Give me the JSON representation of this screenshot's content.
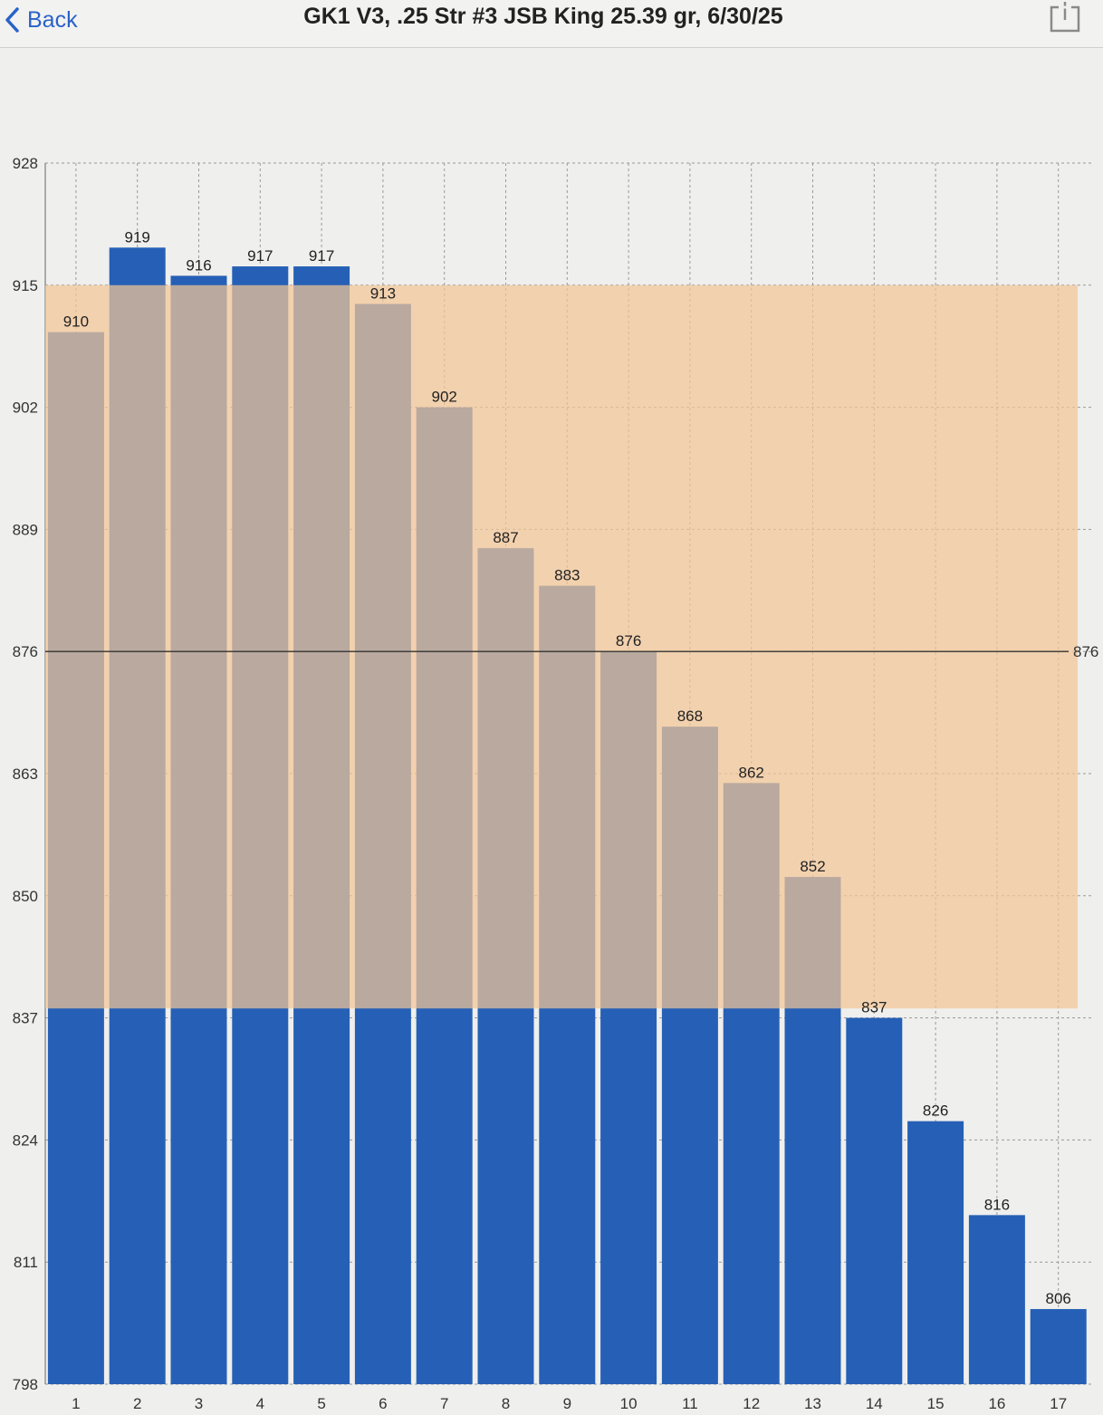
{
  "nav": {
    "back_label": "Back",
    "title": "GK1 V3, .25 Str #3 JSB King 25.39 gr, 6/30/25"
  },
  "icons": {
    "back": "chevron-left-icon",
    "share": "share-icon"
  },
  "colors": {
    "bar": "#2660b6",
    "band": "#f3c596",
    "mean_line": "#333333",
    "grid": "#9a9a9a",
    "back_text": "#2a62c9"
  },
  "chart_data": {
    "type": "bar",
    "categories": [
      "1",
      "2",
      "3",
      "4",
      "5",
      "6",
      "7",
      "8",
      "9",
      "10",
      "11",
      "12",
      "13",
      "14",
      "15",
      "16",
      "17"
    ],
    "values": [
      910,
      919,
      916,
      917,
      917,
      913,
      902,
      887,
      883,
      876,
      868,
      862,
      852,
      837,
      826,
      816,
      806
    ],
    "value_labels": [
      "910",
      "919",
      "916",
      "917",
      "917",
      "913",
      "902",
      "887",
      "883",
      "876",
      "868",
      "862",
      "852",
      "837",
      "826",
      "816",
      "806"
    ],
    "ylim": [
      798,
      928
    ],
    "yticks": [
      928,
      915,
      902,
      889,
      876,
      863,
      850,
      837,
      824,
      811,
      798
    ],
    "ytick_labels": [
      "928",
      "915",
      "902",
      "889",
      "876",
      "863",
      "850",
      "837",
      "824",
      "811",
      "798"
    ],
    "mean_line": {
      "value": 876,
      "label": "876"
    },
    "band": {
      "from": 838,
      "to": 915
    },
    "grid": true
  }
}
